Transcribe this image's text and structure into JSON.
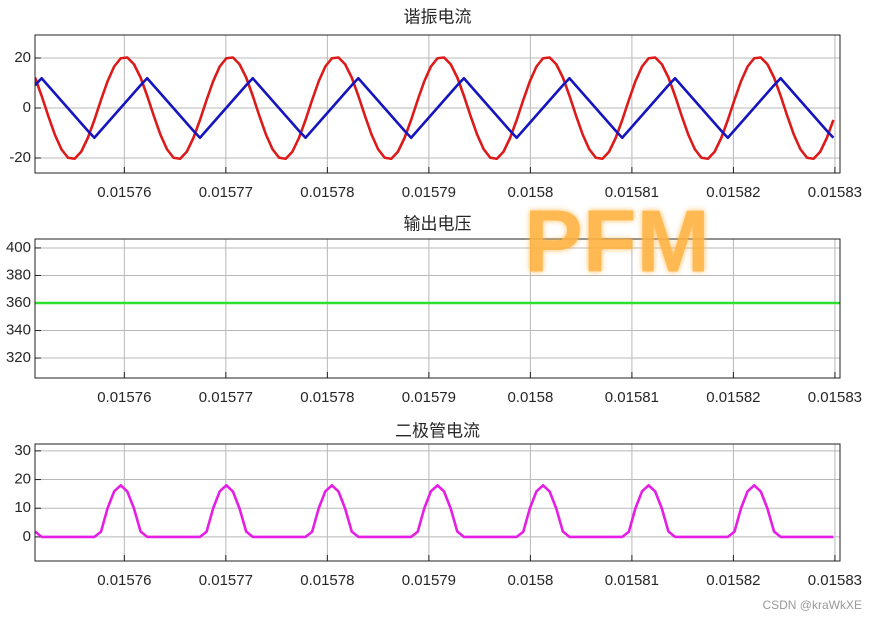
{
  "chart_data": [
    {
      "type": "line",
      "title": "谐振电流",
      "x": [
        0.0157512,
        0.01575185,
        0.0157525,
        0.01575315,
        0.0157538,
        0.01575445,
        0.0157551,
        0.01575575,
        0.0157564,
        0.01575705,
        0.0157577,
        0.01575835,
        0.015759,
        0.01575965,
        0.0157603,
        0.01576095,
        0.0157616,
        0.01576225,
        0.0157629,
        0.01576355,
        0.0157642,
        0.01576485,
        0.0157655,
        0.01576615,
        0.0157668,
        0.01576745,
        0.0157681,
        0.01576875,
        0.0157694,
        0.01577005,
        0.0157707,
        0.01577135,
        0.015772,
        0.01577265,
        0.0157733,
        0.01577395,
        0.0157746,
        0.01577525,
        0.0157759,
        0.01577655,
        0.0157772,
        0.01577785,
        0.0157785,
        0.01577915,
        0.0157798,
        0.01578045,
        0.0157811,
        0.01578175,
        0.0157824,
        0.01578305,
        0.0157837,
        0.01578435,
        0.015785,
        0.01578565,
        0.0157863,
        0.01578695,
        0.0157876,
        0.01578825,
        0.0157889,
        0.01578955,
        0.0157902,
        0.01579085,
        0.0157915,
        0.01579215,
        0.0157928,
        0.01579345,
        0.0157941,
        0.01579475,
        0.0157954,
        0.01579605,
        0.0157967,
        0.01579735,
        0.015798,
        0.01579865,
        0.0157993,
        0.01579995,
        0.0158006,
        0.01580125,
        0.0158019,
        0.01580255,
        0.0158032,
        0.01580385,
        0.0158045,
        0.01580515,
        0.0158058,
        0.01580645,
        0.0158071,
        0.01580775,
        0.0158084,
        0.01580905,
        0.0158097,
        0.01581035,
        0.015811,
        0.01581165,
        0.0158123,
        0.01581295,
        0.0158136,
        0.01581425,
        0.0158149,
        0.01581555,
        0.0158162,
        0.01581685,
        0.0158175,
        0.01581815,
        0.0158188,
        0.01581945,
        0.0158201,
        0.01582075,
        0.0158214,
        0.01582205,
        0.0158227,
        0.01582335,
        0.015824,
        0.01582465,
        0.0158253,
        0.01582595,
        0.0158266,
        0.01582725,
        0.0158279,
        0.01582855,
        0.0158292,
        0.01582985
      ],
      "series": [
        {
          "color": "#dd1a1a",
          "values": [
            12.2,
            4.9,
            -3.1,
            -10.6,
            -16.5,
            -19.9,
            -20.3,
            -17.5,
            -12,
            -4.8,
            3.2,
            10.7,
            16.6,
            19.9,
            20.2,
            17.5,
            12.2,
            4.9,
            -3.1,
            -10.6,
            -16.5,
            -19.9,
            -20.3,
            -17.5,
            -12,
            -4.8,
            3.2,
            10.7,
            16.6,
            19.9,
            20.2,
            17.5,
            12.2,
            4.9,
            -3.1,
            -10.6,
            -16.5,
            -19.9,
            -20.3,
            -17.5,
            -12,
            -4.8,
            3.2,
            10.7,
            16.6,
            19.9,
            20.2,
            17.5,
            12.2,
            4.9,
            -3.1,
            -10.6,
            -16.5,
            -19.9,
            -20.3,
            -17.5,
            -12,
            -4.8,
            3.2,
            10.7,
            16.6,
            19.9,
            20.2,
            17.5,
            12.2,
            4.9,
            -3.1,
            -10.6,
            -16.5,
            -19.9,
            -20.3,
            -17.5,
            -12,
            -4.8,
            3.2,
            10.7,
            16.6,
            19.9,
            20.2,
            17.5,
            12.2,
            4.9,
            -3.1,
            -10.6,
            -16.5,
            -19.9,
            -20.3,
            -17.5,
            -12,
            -4.8,
            3.2,
            10.7,
            16.6,
            19.9,
            20.2,
            17.5,
            12.2,
            4.9,
            -3.1,
            -10.6,
            -16.5,
            -19.9,
            -20.3,
            -17.5,
            -12,
            -4.8,
            3.2,
            10.7,
            16.6,
            19.9,
            20.2,
            17.5,
            12.2,
            4.9,
            -3.1,
            -10.6,
            -16.5,
            -19.9,
            -20.3,
            -17.5,
            -12,
            -4.8
          ]
        },
        {
          "color": "#1515c0",
          "values": [
            9.1,
            11.9,
            8.9,
            5.9,
            2.9,
            -0.1,
            -3.1,
            -6.1,
            -9.1,
            -11.9,
            -8.9,
            -5.9,
            -2.9,
            0.1,
            3.1,
            6.1,
            9.1,
            11.9,
            8.9,
            5.9,
            2.9,
            -0.1,
            -3.1,
            -6.1,
            -9.1,
            -11.9,
            -8.9,
            -5.9,
            -2.9,
            0.1,
            3.1,
            6.1,
            9.1,
            11.9,
            8.9,
            5.9,
            2.9,
            -0.1,
            -3.1,
            -6.1,
            -9.1,
            -11.9,
            -8.9,
            -5.9,
            -2.9,
            0.1,
            3.1,
            6.1,
            9.1,
            11.9,
            8.9,
            5.9,
            2.9,
            -0.1,
            -3.1,
            -6.1,
            -9.1,
            -11.9,
            -8.9,
            -5.9,
            -2.9,
            0.1,
            3.1,
            6.1,
            9.1,
            11.9,
            8.9,
            5.9,
            2.9,
            -0.1,
            -3.1,
            -6.1,
            -9.1,
            -11.9,
            -8.9,
            -5.9,
            -2.9,
            0.1,
            3.1,
            6.1,
            9.1,
            11.9,
            8.9,
            5.9,
            2.9,
            -0.1,
            -3.1,
            -6.1,
            -9.1,
            -11.9,
            -8.9,
            -5.9,
            -2.9,
            0.1,
            3.1,
            6.1,
            9.1,
            11.9,
            8.9,
            5.9,
            2.9,
            -0.1,
            -3.1,
            -6.1,
            -9.1,
            -11.9,
            -8.9,
            -5.9,
            -2.9,
            0.1,
            3.1,
            6.1,
            9.1,
            11.9,
            8.9,
            5.9,
            2.9,
            -0.1,
            -3.1,
            -6.1,
            -9.1,
            -11.9
          ]
        }
      ],
      "xlim": [
        0.0157512,
        0.0158305
      ],
      "xticks": [
        0.01576,
        0.01577,
        0.01578,
        0.01579,
        0.0158,
        0.01581,
        0.01582,
        0.01583
      ],
      "ylim": [
        -26,
        29.2
      ],
      "yticks": [
        -20,
        0,
        20
      ],
      "grid": true
    },
    {
      "type": "line",
      "title": "输出电压",
      "x": [
        0.0157512,
        0.0158305
      ],
      "series": [
        {
          "color": "#2ee02e",
          "values": [
            360,
            360
          ]
        }
      ],
      "xlim": [
        0.0157512,
        0.0158305
      ],
      "xticks": [
        0.01576,
        0.01577,
        0.01578,
        0.01579,
        0.0158,
        0.01581,
        0.01582,
        0.01583
      ],
      "ylim": [
        305.5,
        406.5
      ],
      "yticks": [
        320,
        340,
        360,
        380,
        400
      ],
      "grid": true
    },
    {
      "type": "line",
      "title": "二极管电流",
      "x": [
        0.0157512,
        0.01575185,
        0.0157525,
        0.01575315,
        0.0157538,
        0.01575445,
        0.0157551,
        0.01575575,
        0.0157564,
        0.01575705,
        0.0157577,
        0.01575835,
        0.015759,
        0.01575965,
        0.0157603,
        0.01576095,
        0.0157616,
        0.01576225,
        0.0157629,
        0.01576355,
        0.0157642,
        0.01576485,
        0.0157655,
        0.01576615,
        0.0157668,
        0.01576745,
        0.0157681,
        0.01576875,
        0.0157694,
        0.01577005,
        0.0157707,
        0.01577135,
        0.015772,
        0.01577265,
        0.0157733,
        0.01577395,
        0.0157746,
        0.01577525,
        0.0157759,
        0.01577655,
        0.0157772,
        0.01577785,
        0.0157785,
        0.01577915,
        0.0157798,
        0.01578045,
        0.0157811,
        0.01578175,
        0.0157824,
        0.01578305,
        0.0157837,
        0.01578435,
        0.015785,
        0.01578565,
        0.0157863,
        0.01578695,
        0.0157876,
        0.01578825,
        0.0157889,
        0.01578955,
        0.0157902,
        0.01579085,
        0.0157915,
        0.01579215,
        0.0157928,
        0.01579345,
        0.0157941,
        0.01579475,
        0.0157954,
        0.01579605,
        0.0157967,
        0.01579735,
        0.015798,
        0.01579865,
        0.0157993,
        0.01579995,
        0.0158006,
        0.01580125,
        0.0158019,
        0.01580255,
        0.0158032,
        0.01580385,
        0.0158045,
        0.01580515,
        0.0158058,
        0.01580645,
        0.0158071,
        0.01580775,
        0.0158084,
        0.01580905,
        0.0158097,
        0.01581035,
        0.015811,
        0.01581165,
        0.0158123,
        0.01581295,
        0.0158136,
        0.01581425,
        0.0158149,
        0.01581555,
        0.0158162,
        0.01581685,
        0.0158175,
        0.01581815,
        0.0158188,
        0.01581945,
        0.0158201,
        0.01582075,
        0.0158214,
        0.01582205,
        0.0158227,
        0.01582335,
        0.015824,
        0.01582465,
        0.0158253,
        0.01582595,
        0.0158266,
        0.01582725,
        0.0158279,
        0.01582855,
        0.0158292,
        0.01582985
      ],
      "series": [
        {
          "color": "#e41ee4",
          "values": [
            1.9,
            0,
            0,
            0,
            0,
            0,
            0,
            0,
            0,
            0,
            1.8,
            10,
            15.9,
            18,
            15.8,
            9.9,
            1.9,
            0,
            0,
            0,
            0,
            0,
            0,
            0,
            0,
            0,
            1.8,
            10,
            15.9,
            18,
            15.8,
            9.9,
            1.9,
            0,
            0,
            0,
            0,
            0,
            0,
            0,
            0,
            0,
            1.8,
            10,
            15.9,
            18,
            15.8,
            9.9,
            1.9,
            0,
            0,
            0,
            0,
            0,
            0,
            0,
            0,
            0,
            1.8,
            10,
            15.9,
            18,
            15.8,
            9.9,
            1.9,
            0,
            0,
            0,
            0,
            0,
            0,
            0,
            0,
            0,
            1.8,
            10,
            15.9,
            18,
            15.8,
            9.9,
            1.9,
            0,
            0,
            0,
            0,
            0,
            0,
            0,
            0,
            0,
            1.8,
            10,
            15.9,
            18,
            15.8,
            9.9,
            1.9,
            0,
            0,
            0,
            0,
            0,
            0,
            0,
            0,
            0,
            1.8,
            10,
            15.9,
            18,
            15.8,
            9.9,
            1.9,
            0,
            0,
            0,
            0,
            0,
            0,
            0,
            0,
            0
          ]
        }
      ],
      "xlim": [
        0.0157512,
        0.0158305
      ],
      "xticks": [
        0.01576,
        0.01577,
        0.01578,
        0.01579,
        0.0158,
        0.01581,
        0.01582,
        0.01583
      ],
      "ylim": [
        -8.4,
        32.4
      ],
      "yticks": [
        0,
        10,
        20,
        30
      ],
      "grid": true
    }
  ],
  "overlay_text": "PFM",
  "watermark": "CSDN @kraWkXE"
}
